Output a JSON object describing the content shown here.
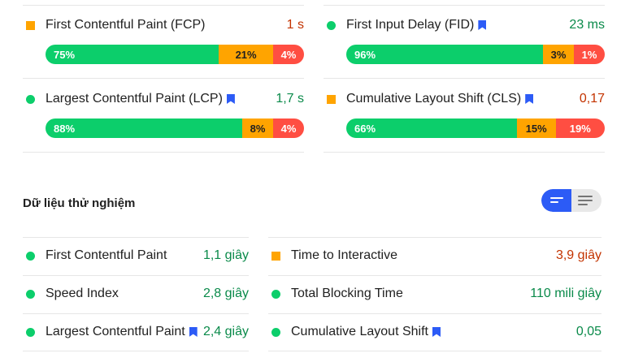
{
  "colors": {
    "fast": "#0cce6b",
    "average": "#ffa400",
    "slow": "#ff4e42",
    "fast_text": "#0a8a4a",
    "average_text": "#c33300",
    "flag": "#2c5bf6"
  },
  "field": {
    "fcp": {
      "label": "First Contentful Paint (FCP)",
      "value": "1 s",
      "status": "average",
      "fast": "75%",
      "avg": "21%",
      "slow": "4%",
      "fast_pct": 75,
      "avg_pct": 21,
      "slow_pct": 4
    },
    "fid": {
      "label": "First Input Delay (FID)",
      "value": "23 ms",
      "status": "fast",
      "fast": "96%",
      "avg": "3%",
      "slow": "1%",
      "fast_pct": 96,
      "avg_pct": 3,
      "slow_pct": 1
    },
    "lcp": {
      "label": "Largest Contentful Paint (LCP)",
      "value": "1,7 s",
      "status": "fast",
      "fast": "88%",
      "avg": "8%",
      "slow": "4%",
      "fast_pct": 88,
      "avg_pct": 8,
      "slow_pct": 4
    },
    "cls": {
      "label": "Cumulative Layout Shift (CLS)",
      "value": "0,17",
      "status": "average",
      "fast": "66%",
      "avg": "15%",
      "slow": "19%",
      "fast_pct": 66,
      "avg_pct": 15,
      "slow_pct": 19
    }
  },
  "lab": {
    "title": "Dữ liệu thử nghiệm",
    "fcp": {
      "label": "First Contentful Paint",
      "value": "1,1 giây"
    },
    "tti": {
      "label": "Time to Interactive",
      "value": "3,9 giây"
    },
    "si": {
      "label": "Speed Index",
      "value": "2,8 giây"
    },
    "tbt": {
      "label": "Total Blocking Time",
      "value": "110 mili giây"
    },
    "lcp": {
      "label": "Largest Contentful Paint",
      "value": "2,4 giây"
    },
    "cls": {
      "label": "Cumulative Layout Shift",
      "value": "0,05"
    }
  },
  "toggle": {
    "left_icon": "list-view-icon",
    "right_icon": "description-view-icon"
  }
}
